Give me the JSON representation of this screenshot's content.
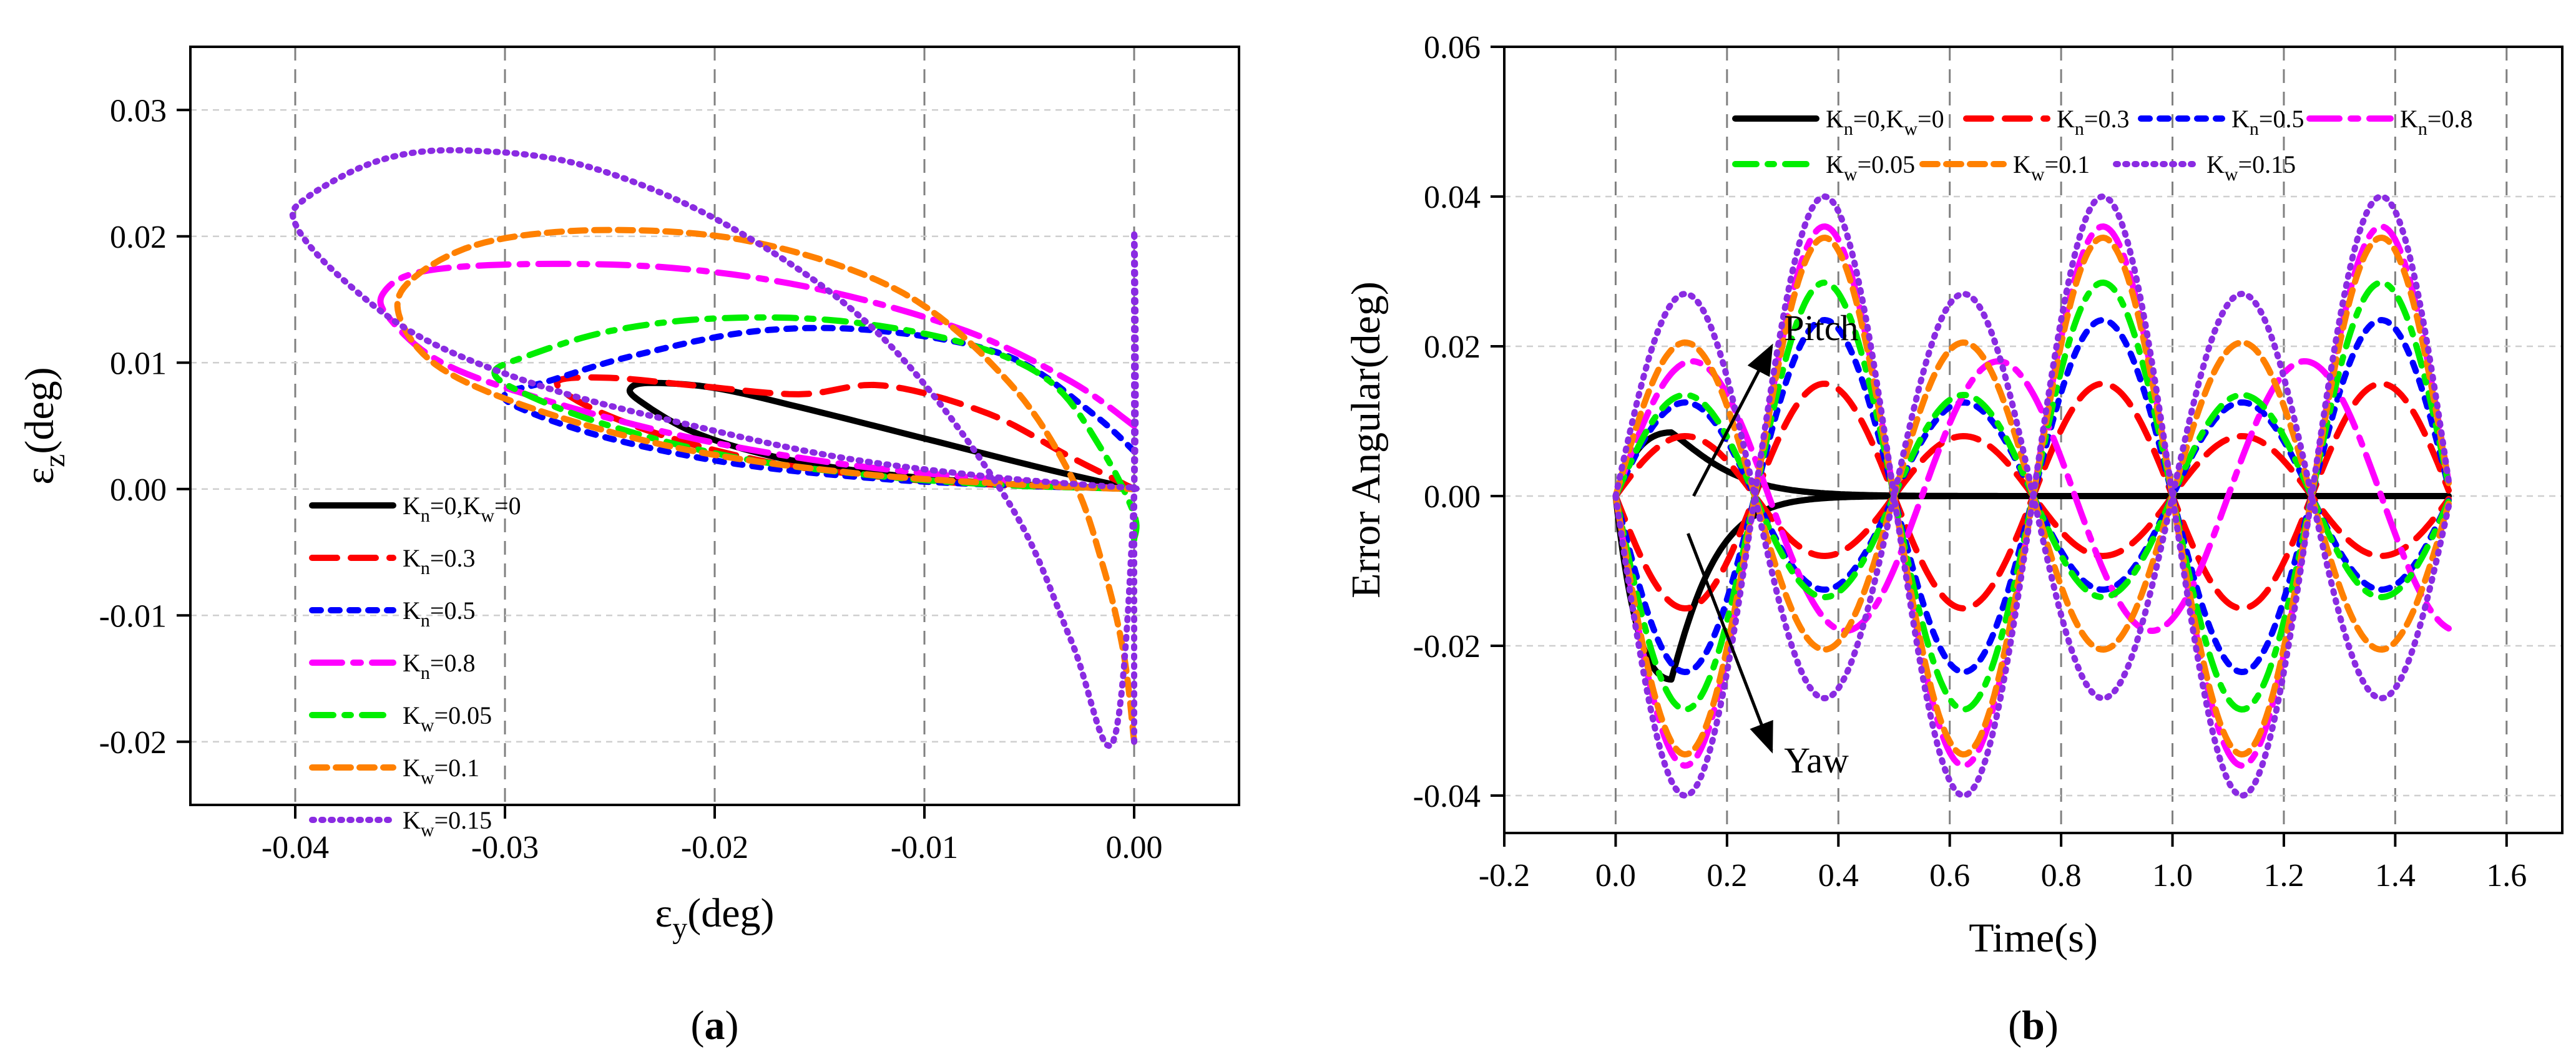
{
  "series_styles": {
    "s0": {
      "color": "#000000",
      "dash": "none",
      "width": 10
    },
    "s1": {
      "color": "#ff0000",
      "dash": "40 22",
      "width": 10
    },
    "s2": {
      "color": "#0000ff",
      "dash": "14 16",
      "width": 10
    },
    "s3": {
      "color": "#ff00ff",
      "dash": "48 18 12 18",
      "width": 10
    },
    "s4": {
      "color": "#00ee00",
      "dash": "34 18 10 18",
      "width": 10
    },
    "s5": {
      "color": "#ff8000",
      "dash": "24 14",
      "width": 10
    },
    "s6": {
      "color": "#8a2be2",
      "dash": "3 12",
      "width": 10
    }
  },
  "chart_data": [
    {
      "id": "a",
      "type": "line",
      "panel_label": "(a)",
      "xlabel_main": "ε",
      "xlabel_sub": "y",
      "xlabel_unit": "(deg)",
      "ylabel_main": "ε",
      "ylabel_sub": "z",
      "ylabel_unit": "(deg)",
      "xlim": [
        -0.045,
        0.005
      ],
      "ylim": [
        -0.025,
        0.035
      ],
      "xticks": [
        -0.04,
        -0.03,
        -0.02,
        -0.01,
        0.0
      ],
      "xtick_labels": [
        "-0.04",
        "-0.03",
        "-0.02",
        "-0.01",
        "0.00"
      ],
      "yticks": [
        -0.02,
        -0.01,
        0.0,
        0.01,
        0.02,
        0.03
      ],
      "ytick_labels": [
        "-0.02",
        "-0.01",
        "0.00",
        "0.01",
        "0.02",
        "0.03"
      ],
      "grid": true,
      "legend_position": "lower-left",
      "series": [
        {
          "name_main": "K",
          "name_sub": "n",
          "name_rest": "=0,K",
          "name_sub2": "w",
          "name_rest2": "=0",
          "style": "s0",
          "x": [
            0,
            -0.004,
            -0.01,
            -0.016,
            -0.02,
            -0.023,
            -0.024,
            -0.0236,
            -0.021,
            -0.017,
            -0.012,
            -0.007,
            -0.003,
            0
          ],
          "y": [
            0,
            0.0015,
            0.004,
            0.0065,
            0.008,
            0.0084,
            0.008,
            0.007,
            0.0045,
            0.0025,
            0.0012,
            0.0005,
            0.0002,
            0
          ]
        },
        {
          "name_main": "K",
          "name_sub": "n",
          "name_rest": "=0.3",
          "name_sub2": "",
          "name_rest2": "",
          "style": "s1",
          "x": [
            0,
            -0.003,
            -0.007,
            -0.012,
            -0.016,
            -0.021,
            -0.025,
            -0.0275,
            -0.026,
            -0.022,
            -0.017,
            -0.011,
            -0.006,
            -0.002,
            0
          ],
          "y": [
            0,
            0.0025,
            0.006,
            0.0082,
            0.0075,
            0.0082,
            0.0088,
            0.0085,
            0.0065,
            0.004,
            0.002,
            0.0008,
            0.0003,
            0.0001,
            0
          ]
        },
        {
          "name_main": "K",
          "name_sub": "n",
          "name_rest": "=0.5",
          "name_sub2": "",
          "name_rest2": "",
          "style": "s2",
          "x": [
            0,
            -0.002,
            -0.006,
            -0.012,
            -0.018,
            -0.024,
            -0.028,
            -0.03,
            -0.029,
            -0.025,
            -0.019,
            -0.012,
            -0.006,
            -0.002,
            0
          ],
          "y": [
            0.003,
            0.006,
            0.0105,
            0.0125,
            0.0125,
            0.0105,
            0.0085,
            0.0075,
            0.0062,
            0.004,
            0.002,
            0.0008,
            0.0003,
            0.0001,
            0
          ]
        },
        {
          "name_main": "K",
          "name_sub": "n",
          "name_rest": "=0.8",
          "name_sub2": "",
          "name_rest2": "",
          "style": "s3",
          "x": [
            0,
            -0.003,
            -0.008,
            -0.015,
            -0.022,
            -0.029,
            -0.034,
            -0.0358,
            -0.0355,
            -0.033,
            -0.028,
            -0.021,
            -0.014,
            -0.007,
            -0.002,
            0
          ],
          "y": [
            0.005,
            0.0085,
            0.0125,
            0.0158,
            0.0175,
            0.0178,
            0.0172,
            0.0155,
            0.0135,
            0.01,
            0.007,
            0.004,
            0.002,
            0.0008,
            0.0002,
            0
          ]
        },
        {
          "name_main": "K",
          "name_sub": "w",
          "name_rest": "=0.05",
          "name_sub2": "",
          "name_rest2": "",
          "style": "s4",
          "x": [
            0,
            0,
            -0.0015,
            -0.004,
            -0.008,
            -0.014,
            -0.02,
            -0.025,
            -0.029,
            -0.0305,
            -0.029,
            -0.025,
            -0.019,
            -0.012,
            -0.006,
            -0.002,
            0
          ],
          "y": [
            -0.004,
            -0.002,
            0.003,
            0.0085,
            0.0115,
            0.0133,
            0.0135,
            0.0125,
            0.0105,
            0.0092,
            0.0075,
            0.005,
            0.0025,
            0.001,
            0.0003,
            0.0001,
            0
          ]
        },
        {
          "name_main": "K",
          "name_sub": "w",
          "name_rest": "=0.1",
          "name_sub2": "",
          "name_rest2": "",
          "style": "s5",
          "x": [
            0,
            -0.0005,
            -0.0015,
            -0.003,
            -0.006,
            -0.011,
            -0.018,
            -0.025,
            -0.031,
            -0.0345,
            -0.035,
            -0.033,
            -0.028,
            -0.021,
            -0.013,
            -0.006,
            -0.002,
            0
          ],
          "y": [
            -0.02,
            -0.013,
            -0.006,
            0.001,
            0.0085,
            0.0155,
            0.0195,
            0.0205,
            0.0195,
            0.0165,
            0.0135,
            0.0095,
            0.006,
            0.003,
            0.0012,
            0.0004,
            0.0001,
            0
          ]
        },
        {
          "name_main": "K",
          "name_sub": "w",
          "name_rest": "=0.15",
          "name_sub2": "",
          "name_rest2": "",
          "style": "s6",
          "x": [
            0,
            0,
            0,
            -0.001,
            -0.003,
            -0.006,
            -0.012,
            -0.019,
            -0.026,
            -0.032,
            -0.036,
            -0.0395,
            -0.04,
            -0.038,
            -0.034,
            -0.028,
            -0.021,
            -0.014,
            -0.007,
            -0.002,
            0,
            0
          ],
          "y": [
            -0.02,
            0.02,
            0,
            -0.02,
            -0.012,
            -0.001,
            0.012,
            0.0205,
            0.0255,
            0.0268,
            0.026,
            0.023,
            0.021,
            0.017,
            0.012,
            0.008,
            0.005,
            0.0025,
            0.001,
            0.0003,
            0.0001,
            0
          ]
        }
      ]
    },
    {
      "id": "b",
      "type": "line",
      "panel_label": "(b)",
      "xlabel": "Time(s)",
      "ylabel": "Error Angular(deg)",
      "xlim": [
        -0.2,
        1.7
      ],
      "ylim": [
        -0.045,
        0.06
      ],
      "xticks": [
        -0.2,
        0.0,
        0.2,
        0.4,
        0.6,
        0.8,
        1.0,
        1.2,
        1.4,
        1.6
      ],
      "xtick_labels": [
        "-0.2",
        "0.0",
        "0.2",
        "0.4",
        "0.6",
        "0.8",
        "1.0",
        "1.2",
        "1.4",
        "1.6"
      ],
      "yticks": [
        -0.04,
        -0.02,
        0.0,
        0.02,
        0.04,
        0.06
      ],
      "ytick_labels": [
        "-0.04",
        "-0.02",
        "0.00",
        "0.02",
        "0.04",
        "0.06"
      ],
      "grid": true,
      "legend_position": "top",
      "annotations": [
        {
          "text": "Pitch",
          "from": [
            0.14,
            0.0
          ],
          "to": [
            0.28,
            0.02
          ]
        },
        {
          "text": "Yaw",
          "from": [
            0.13,
            -0.005
          ],
          "to": [
            0.28,
            -0.034
          ]
        }
      ],
      "series": [
        {
          "name_main": "K",
          "name_sub": "n",
          "name_rest": "=0,K",
          "name_sub2": "w",
          "name_rest2": "=0",
          "style": "s0",
          "pitch": {
            "amp": 0.0085,
            "period": 0.5,
            "decay": 0.16
          },
          "yaw": {
            "amp": -0.0245,
            "period": 0.5,
            "decay": 0.09
          }
        },
        {
          "name_main": "K",
          "name_sub": "n",
          "name_rest": "=0.3",
          "name_sub2": "",
          "name_rest2": "",
          "style": "s1",
          "pitch": {
            "amp": 0.008,
            "period": 0.5,
            "decay": 0
          },
          "yaw": {
            "amp": -0.015,
            "period": 0.5,
            "decay": 0
          }
        },
        {
          "name_main": "K",
          "name_sub": "n",
          "name_rest": "=0.5",
          "name_sub2": "",
          "name_rest2": "",
          "style": "s2",
          "pitch": {
            "amp": 0.0125,
            "period": 0.5,
            "decay": 0
          },
          "yaw": {
            "amp": -0.0235,
            "period": 0.5,
            "decay": 0
          }
        },
        {
          "name_main": "K",
          "name_sub": "n",
          "name_rest": "=0.8",
          "name_sub2": "",
          "name_rest2": "",
          "style": "s3",
          "pitch": {
            "amp": 0.018,
            "period": 0.55,
            "decay": 0
          },
          "yaw": {
            "amp": -0.036,
            "period": 0.5,
            "decay": 0
          }
        },
        {
          "name_main": "K",
          "name_sub": "w",
          "name_rest": "=0.05",
          "name_sub2": "",
          "name_rest2": "",
          "style": "s4",
          "pitch": {
            "amp": 0.0135,
            "period": 0.5,
            "decay": 0
          },
          "yaw": {
            "amp": -0.0285,
            "period": 0.5,
            "decay": 0
          }
        },
        {
          "name_main": "K",
          "name_sub": "w",
          "name_rest": "=0.1",
          "name_sub2": "",
          "name_rest2": "",
          "style": "s5",
          "pitch": {
            "amp": 0.0205,
            "period": 0.5,
            "decay": 0
          },
          "yaw": {
            "amp": -0.0345,
            "period": 0.5,
            "decay": 0
          }
        },
        {
          "name_main": "K",
          "name_sub": "w",
          "name_rest": "=0.15",
          "name_sub2": "",
          "name_rest2": "",
          "style": "s6",
          "pitch": {
            "amp": 0.027,
            "period": 0.5,
            "decay": 0
          },
          "yaw": {
            "amp": -0.04,
            "period": 0.5,
            "decay": 0
          }
        }
      ]
    }
  ]
}
